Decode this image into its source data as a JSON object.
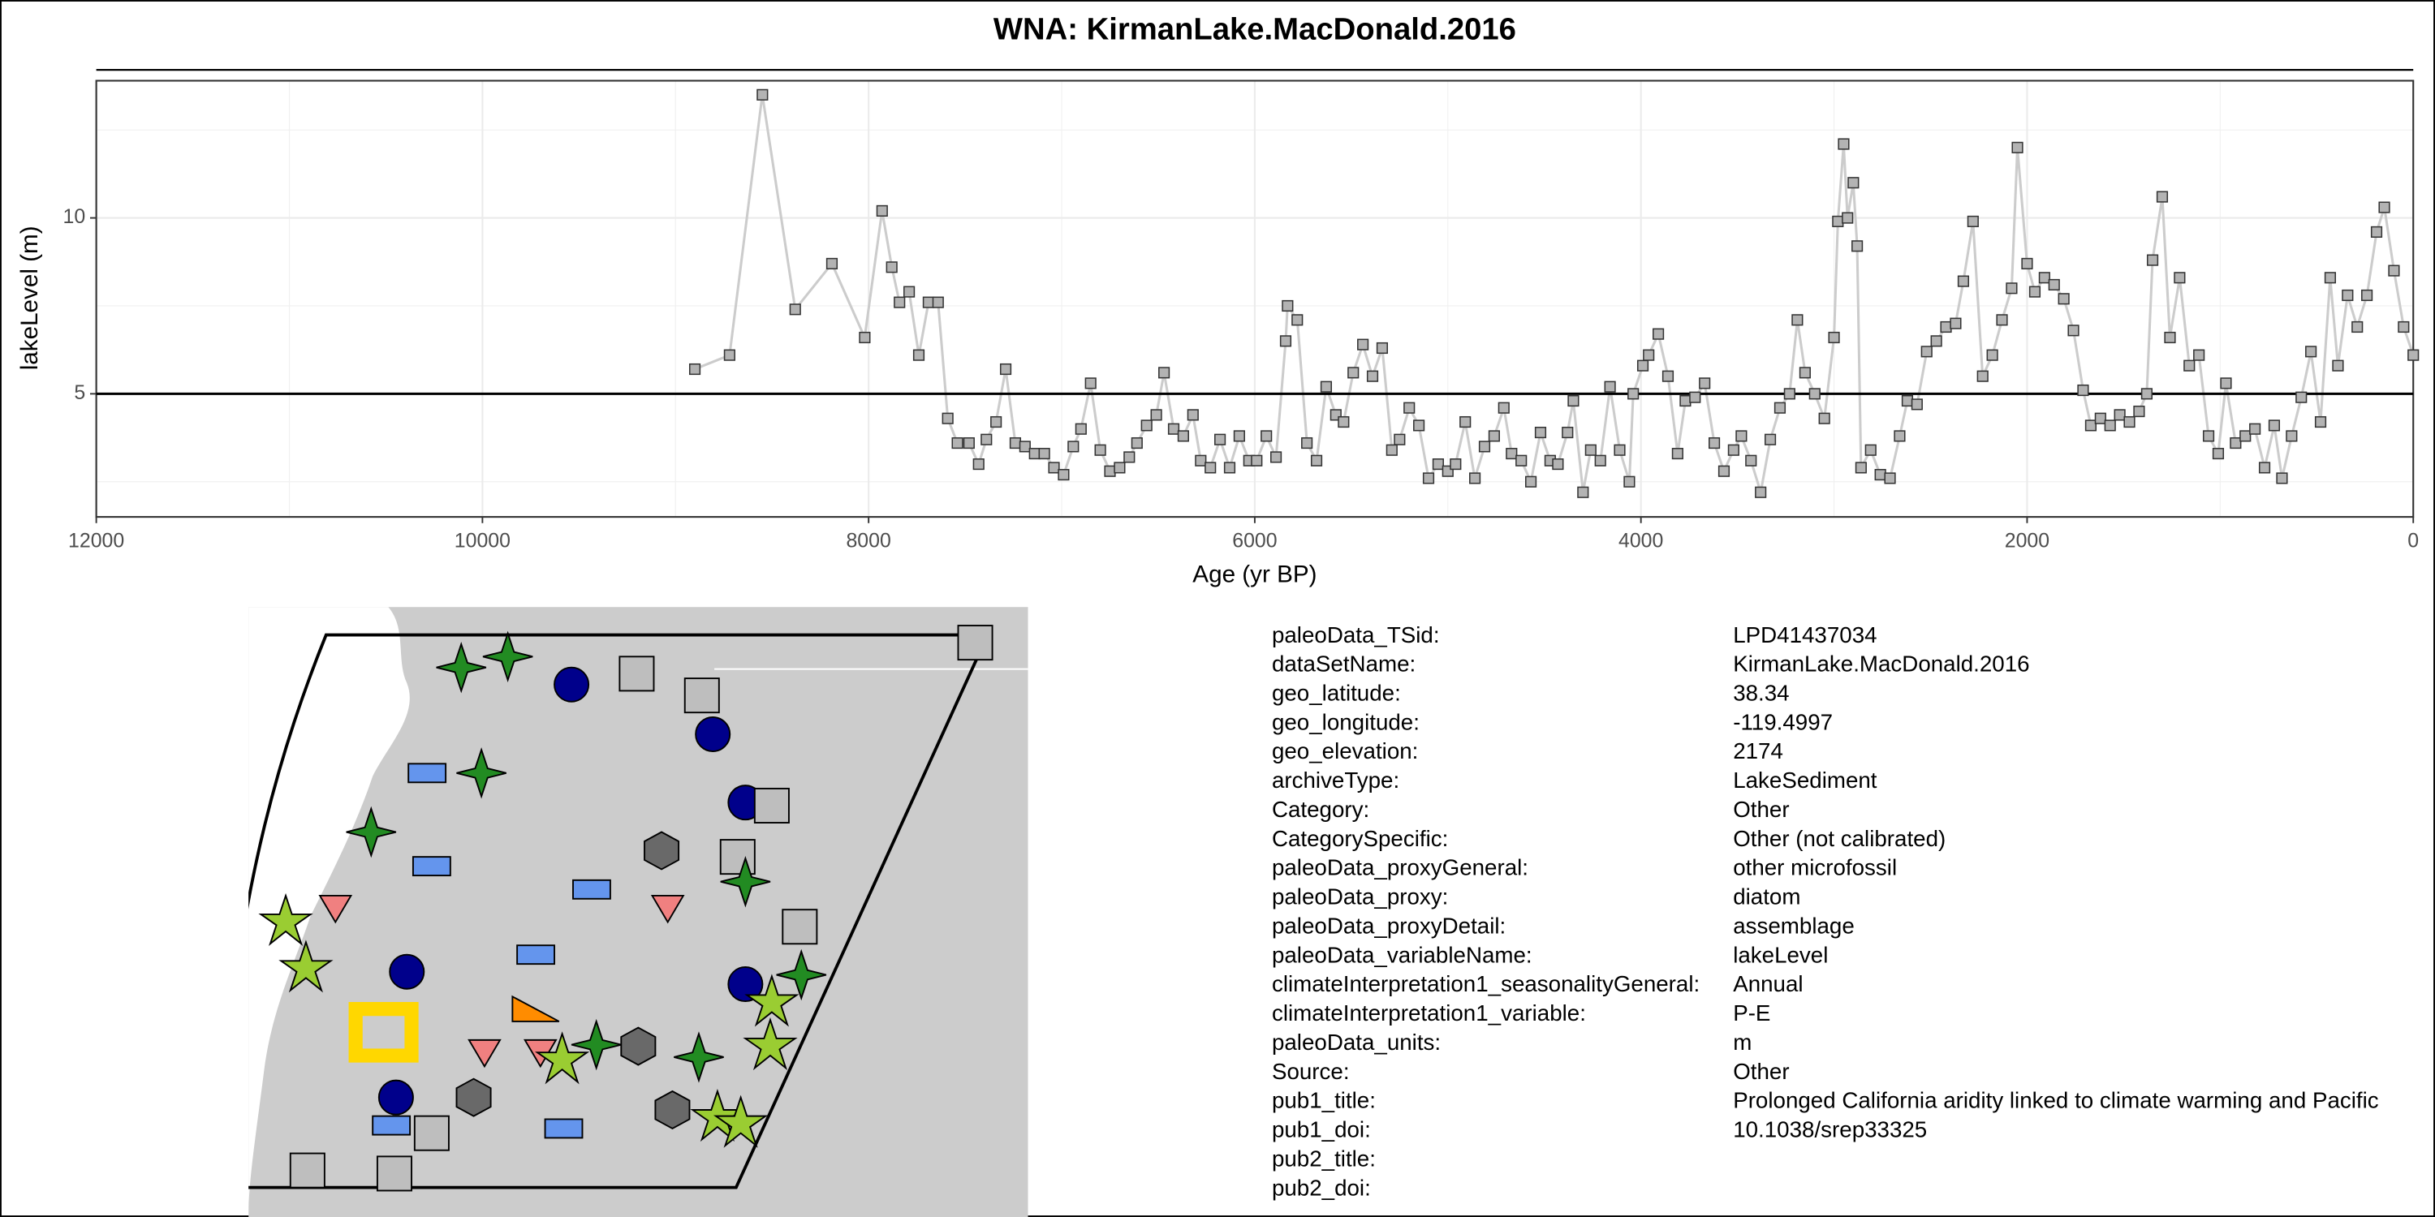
{
  "chart_data": {
    "type": "line",
    "title": "WNA: KirmanLake.MacDonald.2016",
    "x_label": "Age (yr BP)",
    "y_label": "lakeLevel (m)",
    "xlim": [
      12000,
      0
    ],
    "xticks": [
      12000,
      10000,
      8000,
      6000,
      4000,
      2000,
      0
    ],
    "ylim": [
      1.5,
      13.9
    ],
    "yticks": [
      5,
      10
    ],
    "grid": true,
    "reference_line": 5,
    "color": "#cccccc",
    "marker_color": "#b3b3b3",
    "x": [
      8900,
      8720,
      8550,
      8380,
      8190,
      8020,
      7930,
      7880,
      7840,
      7790,
      7740,
      7690,
      7640,
      7590,
      7540,
      7480,
      7430,
      7390,
      7340,
      7290,
      7240,
      7190,
      7140,
      7090,
      7040,
      6990,
      6940,
      6900,
      6850,
      6800,
      6750,
      6700,
      6650,
      6610,
      6560,
      6510,
      6470,
      6420,
      6370,
      6320,
      6280,
      6230,
      6180,
      6130,
      6080,
      6030,
      5990,
      5940,
      5890,
      5840,
      5830,
      5780,
      5730,
      5680,
      5630,
      5580,
      5540,
      5490,
      5440,
      5390,
      5340,
      5290,
      5250,
      5200,
      5150,
      5100,
      5050,
      5000,
      4960,
      4910,
      4860,
      4810,
      4760,
      4710,
      4670,
      4620,
      4570,
      4520,
      4470,
      4430,
      4380,
      4350,
      4300,
      4260,
      4210,
      4160,
      4110,
      4060,
      4040,
      3990,
      3960,
      3910,
      3860,
      3810,
      3770,
      3720,
      3670,
      3620,
      3570,
      3520,
      3480,
      3430,
      3380,
      3330,
      3280,
      3230,
      3190,
      3150,
      3100,
      3050,
      3000,
      2980,
      2950,
      2930,
      2900,
      2880,
      2860,
      2810,
      2760,
      2710,
      2660,
      2620,
      2570,
      2520,
      2470,
      2420,
      2370,
      2330,
      2280,
      2230,
      2180,
      2130,
      2080,
      2050,
      2000,
      1960,
      1910,
      1860,
      1810,
      1760,
      1710,
      1670,
      1620,
      1570,
      1520,
      1470,
      1420,
      1380,
      1350,
      1300,
      1260,
      1210,
      1160,
      1110,
      1060,
      1010,
      970,
      920,
      870,
      820,
      770,
      720,
      680,
      630,
      580,
      530,
      480,
      430,
      390,
      340,
      290,
      240,
      190,
      150,
      100,
      50,
      0
    ],
    "values": [
      5.7,
      6.1,
      13.5,
      7.4,
      8.7,
      6.6,
      10.2,
      8.6,
      7.6,
      7.9,
      6.1,
      7.6,
      7.6,
      4.3,
      3.6,
      3.6,
      3.0,
      3.7,
      4.2,
      5.7,
      3.6,
      3.5,
      3.3,
      3.3,
      2.9,
      2.7,
      3.5,
      4.0,
      5.3,
      3.4,
      2.8,
      2.9,
      3.2,
      3.6,
      4.1,
      4.4,
      5.6,
      4.0,
      3.8,
      4.4,
      3.1,
      2.9,
      3.7,
      2.9,
      3.8,
      3.1,
      3.1,
      3.8,
      3.2,
      6.5,
      7.5,
      7.1,
      3.6,
      3.1,
      5.2,
      4.4,
      4.2,
      5.6,
      6.4,
      5.5,
      6.3,
      3.4,
      3.7,
      4.6,
      4.1,
      2.6,
      3.0,
      2.8,
      3.0,
      4.2,
      2.6,
      3.5,
      3.8,
      4.6,
      3.3,
      3.1,
      2.5,
      3.9,
      3.1,
      3.0,
      3.9,
      4.8,
      2.2,
      3.4,
      3.1,
      5.2,
      3.4,
      2.5,
      5.0,
      5.8,
      6.1,
      6.7,
      5.5,
      3.3,
      4.8,
      4.9,
      5.3,
      3.6,
      2.8,
      3.4,
      3.8,
      3.1,
      2.2,
      3.7,
      4.6,
      5.0,
      7.1,
      5.6,
      5.0,
      4.3,
      6.6,
      9.9,
      12.1,
      10.0,
      11.0,
      9.2,
      2.9,
      3.4,
      2.7,
      2.6,
      3.8,
      4.8,
      4.7,
      6.2,
      6.5,
      6.9,
      7.0,
      8.2,
      9.9,
      5.5,
      6.1,
      7.1,
      8.0,
      12.0,
      8.7,
      7.9,
      8.3,
      8.1,
      7.7,
      6.8,
      5.1,
      4.1,
      4.3,
      4.1,
      4.4,
      4.2,
      4.5,
      5.0,
      8.8,
      10.6,
      6.6,
      8.3,
      5.8,
      6.1,
      3.8,
      3.3,
      5.3,
      3.6,
      3.8,
      4.0,
      2.9,
      4.1,
      2.6,
      3.8,
      4.9,
      6.2,
      4.2,
      8.3,
      5.8,
      7.8,
      6.9,
      7.8,
      9.6,
      10.3,
      8.5,
      6.9,
      6.1
    ]
  },
  "metadata": [
    {
      "key": "paleoData_TSid:",
      "value": "LPD41437034"
    },
    {
      "key": "dataSetName:",
      "value": "KirmanLake.MacDonald.2016"
    },
    {
      "key": "geo_latitude:",
      "value": "38.34"
    },
    {
      "key": "geo_longitude:",
      "value": "-119.4997"
    },
    {
      "key": "geo_elevation:",
      "value": "2174"
    },
    {
      "key": "archiveType:",
      "value": "LakeSediment"
    },
    {
      "key": "Category:",
      "value": "Other"
    },
    {
      "key": "CategorySpecific:",
      "value": "Other (not calibrated)"
    },
    {
      "key": "paleoData_proxyGeneral:",
      "value": "other microfossil"
    },
    {
      "key": "paleoData_proxy:",
      "value": "diatom"
    },
    {
      "key": "paleoData_proxyDetail:",
      "value": "assemblage"
    },
    {
      "key": "paleoData_variableName:",
      "value": "lakeLevel"
    },
    {
      "key": "climateInterpretation1_seasonalityGeneral:",
      "value": "Annual"
    },
    {
      "key": "climateInterpretation1_variable:",
      "value": "P-E"
    },
    {
      "key": "paleoData_units:",
      "value": "m"
    },
    {
      "key": "Source:",
      "value": "Other"
    },
    {
      "key": "pub1_title:",
      "value": "Prolonged California aridity linked to climate warming and Pacific"
    },
    {
      "key": "pub1_doi:",
      "value": "10.1038/srep33325"
    },
    {
      "key": "pub2_title:"
    },
    {
      "key": "pub2_doi:"
    }
  ]
}
